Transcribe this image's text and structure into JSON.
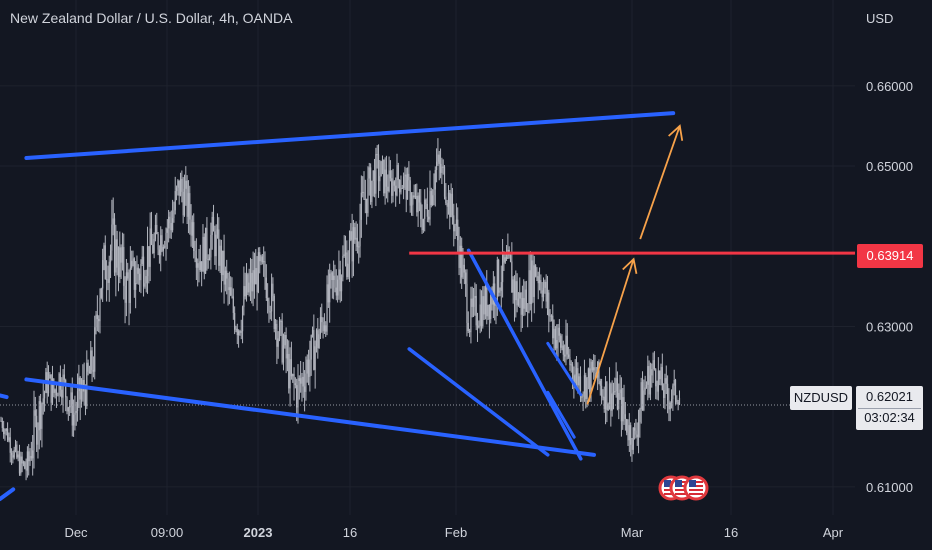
{
  "header": {
    "title": "New Zealand Dollar / U.S. Dollar, 4h, OANDA",
    "currency": "USD"
  },
  "price_axis": {
    "tick_labels": [
      "0.66000",
      "0.65000",
      "0.63000",
      "0.61000"
    ]
  },
  "time_axis": {
    "tick_labels": [
      {
        "text": "Dec",
        "bold": false
      },
      {
        "text": "09:00",
        "bold": false
      },
      {
        "text": "2023",
        "bold": true
      },
      {
        "text": "16",
        "bold": false
      },
      {
        "text": "Feb",
        "bold": false
      },
      {
        "text": "Mar",
        "bold": false
      },
      {
        "text": "16",
        "bold": false
      },
      {
        "text": "Apr",
        "bold": false
      }
    ]
  },
  "labels": {
    "horizontal_line_price": "0.63914",
    "symbol": "NZDUSD",
    "last_price": "0.62021",
    "countdown": "03:02:34"
  },
  "colors": {
    "background": "#131722",
    "candles": "#b2b5be",
    "trendlines": "#2962ff",
    "horizontal_line": "#f23645",
    "projection_arrows": "#f7a24a",
    "text": "#d1d4dc"
  },
  "icons": [
    "us-flag-event-icon",
    "us-flag-event-icon",
    "us-flag-event-icon"
  ],
  "chart_data": {
    "type": "candlestick",
    "symbol": "NZDUSD",
    "timeframe": "4h",
    "y_range": [
      0.6065,
      0.6707
    ],
    "price_path": [
      [
        0.617,
        0.6195
      ],
      [
        0.6148,
        0.6182
      ],
      [
        0.6122,
        0.616
      ],
      [
        0.6108,
        0.6145
      ],
      [
        0.6095,
        0.6152
      ],
      [
        0.613,
        0.6205
      ],
      [
        0.6165,
        0.6235
      ],
      [
        0.6205,
        0.6258
      ],
      [
        0.619,
        0.6245
      ],
      [
        0.621,
        0.627
      ],
      [
        0.6185,
        0.624
      ],
      [
        0.616,
        0.622
      ],
      [
        0.6175,
        0.625
      ],
      [
        0.6195,
        0.6262
      ],
      [
        0.6225,
        0.629
      ],
      [
        0.631,
        0.6395
      ],
      [
        0.634,
        0.6432
      ],
      [
        0.6355,
        0.6448
      ],
      [
        0.634,
        0.642
      ],
      [
        0.6305,
        0.6395
      ],
      [
        0.632,
        0.64
      ],
      [
        0.633,
        0.641
      ],
      [
        0.635,
        0.6425
      ],
      [
        0.637,
        0.6432
      ],
      [
        0.638,
        0.644
      ],
      [
        0.639,
        0.6452
      ],
      [
        0.64,
        0.6475
      ],
      [
        0.644,
        0.651
      ],
      [
        0.6425,
        0.649
      ],
      [
        0.639,
        0.646
      ],
      [
        0.635,
        0.642
      ],
      [
        0.636,
        0.643
      ],
      [
        0.6385,
        0.6445
      ],
      [
        0.636,
        0.6425
      ],
      [
        0.632,
        0.639
      ],
      [
        0.629,
        0.6355
      ],
      [
        0.627,
        0.6335
      ],
      [
        0.63,
        0.6375
      ],
      [
        0.6315,
        0.639
      ],
      [
        0.6335,
        0.64
      ],
      [
        0.633,
        0.6395
      ],
      [
        0.63,
        0.6365
      ],
      [
        0.626,
        0.6325
      ],
      [
        0.6235,
        0.63
      ],
      [
        0.6195,
        0.6262
      ],
      [
        0.618,
        0.6258
      ],
      [
        0.6205,
        0.628
      ],
      [
        0.623,
        0.63
      ],
      [
        0.625,
        0.632
      ],
      [
        0.628,
        0.635
      ],
      [
        0.6305,
        0.638
      ],
      [
        0.633,
        0.6405
      ],
      [
        0.6345,
        0.6418
      ],
      [
        0.6365,
        0.6432
      ],
      [
        0.6385,
        0.6452
      ],
      [
        0.642,
        0.6495
      ],
      [
        0.6445,
        0.651
      ],
      [
        0.6465,
        0.6525
      ],
      [
        0.6455,
        0.6515
      ],
      [
        0.645,
        0.65
      ],
      [
        0.646,
        0.651
      ],
      [
        0.6455,
        0.6505
      ],
      [
        0.644,
        0.649
      ],
      [
        0.642,
        0.6475
      ],
      [
        0.6405,
        0.6465
      ],
      [
        0.643,
        0.6505
      ],
      [
        0.647,
        0.6532
      ],
      [
        0.646,
        0.6515
      ],
      [
        0.6425,
        0.648
      ],
      [
        0.639,
        0.645
      ],
      [
        0.633,
        0.6395
      ],
      [
        0.6275,
        0.634
      ],
      [
        0.6285,
        0.635
      ],
      [
        0.6295,
        0.6355
      ],
      [
        0.63,
        0.637
      ],
      [
        0.6315,
        0.639
      ],
      [
        0.634,
        0.64
      ],
      [
        0.6335,
        0.6405
      ],
      [
        0.63,
        0.6385
      ],
      [
        0.629,
        0.636
      ],
      [
        0.6315,
        0.6385
      ],
      [
        0.634,
        0.6405
      ],
      [
        0.6325,
        0.6385
      ],
      [
        0.629,
        0.635
      ],
      [
        0.626,
        0.632
      ],
      [
        0.624,
        0.631
      ],
      [
        0.623,
        0.6285
      ],
      [
        0.6215,
        0.627
      ],
      [
        0.62,
        0.6255
      ],
      [
        0.6205,
        0.6262
      ],
      [
        0.6215,
        0.627
      ],
      [
        0.6195,
        0.625
      ],
      [
        0.6185,
        0.6245
      ],
      [
        0.619,
        0.6248
      ],
      [
        0.617,
        0.623
      ],
      [
        0.6145,
        0.62
      ],
      [
        0.6135,
        0.6185
      ],
      [
        0.6175,
        0.624
      ],
      [
        0.6205,
        0.6265
      ],
      [
        0.622,
        0.6275
      ],
      [
        0.62,
        0.6255
      ],
      [
        0.6185,
        0.6235
      ],
      [
        0.6195,
        0.624
      ],
      [
        0.62,
        0.6225
      ]
    ]
  },
  "drawings": {
    "resistance_line": {
      "from": [
        4,
        0.651
      ],
      "to": [
        102,
        0.6566
      ]
    },
    "support_line": {
      "from": [
        4,
        0.6234
      ],
      "to": [
        90,
        0.614
      ]
    },
    "left_stub_top": {
      "from": [
        0,
        0.6214
      ],
      "to": [
        1,
        0.6212
      ]
    },
    "left_stub_bottom": {
      "from": [
        0,
        0.6085
      ],
      "to": [
        2,
        0.6097
      ]
    },
    "horizontal_level": {
      "price": 0.63914,
      "from": 62
    },
    "wedge_upper": {
      "from": [
        71,
        0.6395
      ],
      "to": [
        88,
        0.6135
      ]
    },
    "wedge_lower": {
      "from": [
        62,
        0.6272
      ],
      "to": [
        83,
        0.614
      ]
    },
    "flag_upper": {
      "from": [
        83,
        0.6279
      ],
      "to": [
        88,
        0.6215
      ]
    },
    "flag_lower": {
      "from": [
        83,
        0.6218
      ],
      "to": [
        87,
        0.6162
      ]
    },
    "projection_1": {
      "from": [
        89,
        0.6203
      ],
      "to": [
        96,
        0.6384
      ]
    },
    "projection_2": {
      "from": [
        97,
        0.6409
      ],
      "to": [
        103,
        0.655
      ]
    }
  }
}
